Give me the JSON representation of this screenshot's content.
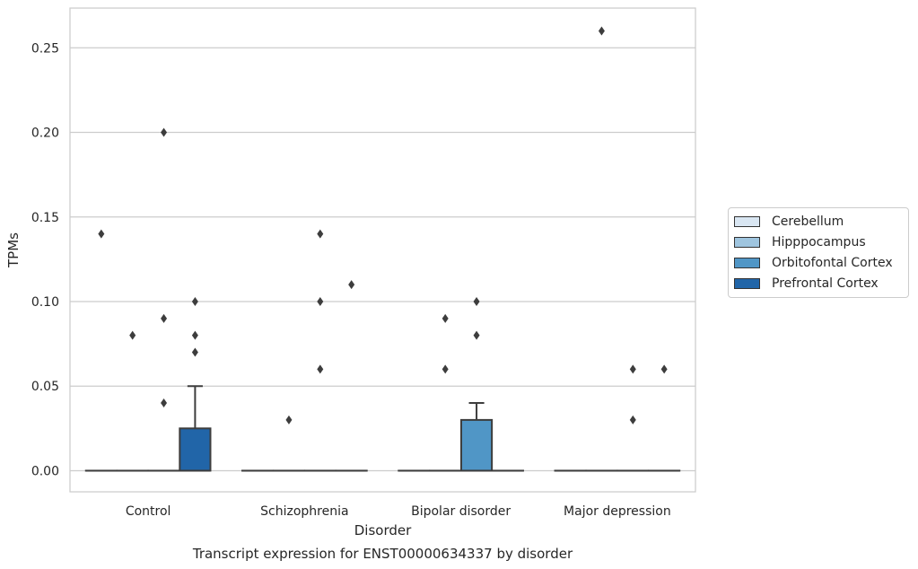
{
  "chart_data": {
    "type": "box",
    "title": "Transcript expression for ENST00000634337 by disorder",
    "xlabel": "Disorder",
    "ylabel": "TPMs",
    "ylim": [
      -0.0125,
      0.2735
    ],
    "yticks": [
      0.0,
      0.05,
      0.1,
      0.15,
      0.2,
      0.25
    ],
    "ytick_labels": [
      "0.00",
      "0.05",
      "0.10",
      "0.15",
      "0.20",
      "0.25"
    ],
    "categories": [
      "Control",
      "Schizophrenia",
      "Bipolar disorder",
      "Major depression"
    ],
    "grid": "horizontal",
    "legend_position": "right",
    "series": [
      {
        "name": "Cerebellum",
        "color": "#d9e6f2",
        "boxes": [
          {
            "q1": 0,
            "median": 0,
            "q3": 0,
            "whisker_low": 0,
            "whisker_high": 0,
            "outliers": [
              0.14
            ]
          },
          {
            "q1": 0,
            "median": 0,
            "q3": 0,
            "whisker_low": 0,
            "whisker_high": 0,
            "outliers": []
          },
          {
            "q1": 0,
            "median": 0,
            "q3": 0,
            "whisker_low": 0,
            "whisker_high": 0,
            "outliers": []
          },
          {
            "q1": 0,
            "median": 0,
            "q3": 0,
            "whisker_low": 0,
            "whisker_high": 0,
            "outliers": []
          }
        ]
      },
      {
        "name": "Hipppocampus",
        "color": "#9fc5df",
        "boxes": [
          {
            "q1": 0,
            "median": 0,
            "q3": 0,
            "whisker_low": 0,
            "whisker_high": 0,
            "outliers": [
              0.08
            ]
          },
          {
            "q1": 0,
            "median": 0,
            "q3": 0,
            "whisker_low": 0,
            "whisker_high": 0,
            "outliers": [
              0.03
            ]
          },
          {
            "q1": 0,
            "median": 0,
            "q3": 0,
            "whisker_low": 0,
            "whisker_high": 0,
            "outliers": [
              0.09,
              0.06
            ]
          },
          {
            "q1": 0,
            "median": 0,
            "q3": 0,
            "whisker_low": 0,
            "whisker_high": 0,
            "outliers": [
              0.26
            ]
          }
        ]
      },
      {
        "name": "Orbitofontal Cortex",
        "color": "#5096c6",
        "boxes": [
          {
            "q1": 0,
            "median": 0,
            "q3": 0,
            "whisker_low": 0,
            "whisker_high": 0,
            "outliers": [
              0.2,
              0.09,
              0.04
            ]
          },
          {
            "q1": 0,
            "median": 0,
            "q3": 0,
            "whisker_low": 0,
            "whisker_high": 0,
            "outliers": [
              0.14,
              0.1,
              0.06
            ]
          },
          {
            "q1": 0,
            "median": 0,
            "q3": 0.03,
            "whisker_low": 0,
            "whisker_high": 0.04,
            "outliers": [
              0.1,
              0.08
            ]
          },
          {
            "q1": 0,
            "median": 0,
            "q3": 0,
            "whisker_low": 0,
            "whisker_high": 0,
            "outliers": [
              0.03,
              0.06
            ]
          }
        ]
      },
      {
        "name": "Prefrontal Cortex",
        "color": "#2165a8",
        "boxes": [
          {
            "q1": 0,
            "median": 0,
            "q3": 0.025,
            "whisker_low": 0,
            "whisker_high": 0.05,
            "outliers": [
              0.1,
              0.08,
              0.07
            ]
          },
          {
            "q1": 0,
            "median": 0,
            "q3": 0,
            "whisker_low": 0,
            "whisker_high": 0,
            "outliers": [
              0.11
            ]
          },
          {
            "q1": 0,
            "median": 0,
            "q3": 0,
            "whisker_low": 0,
            "whisker_high": 0,
            "outliers": []
          },
          {
            "q1": 0,
            "median": 0,
            "q3": 0,
            "whisker_low": 0,
            "whisker_high": 0,
            "outliers": [
              0.06
            ]
          }
        ]
      }
    ]
  }
}
